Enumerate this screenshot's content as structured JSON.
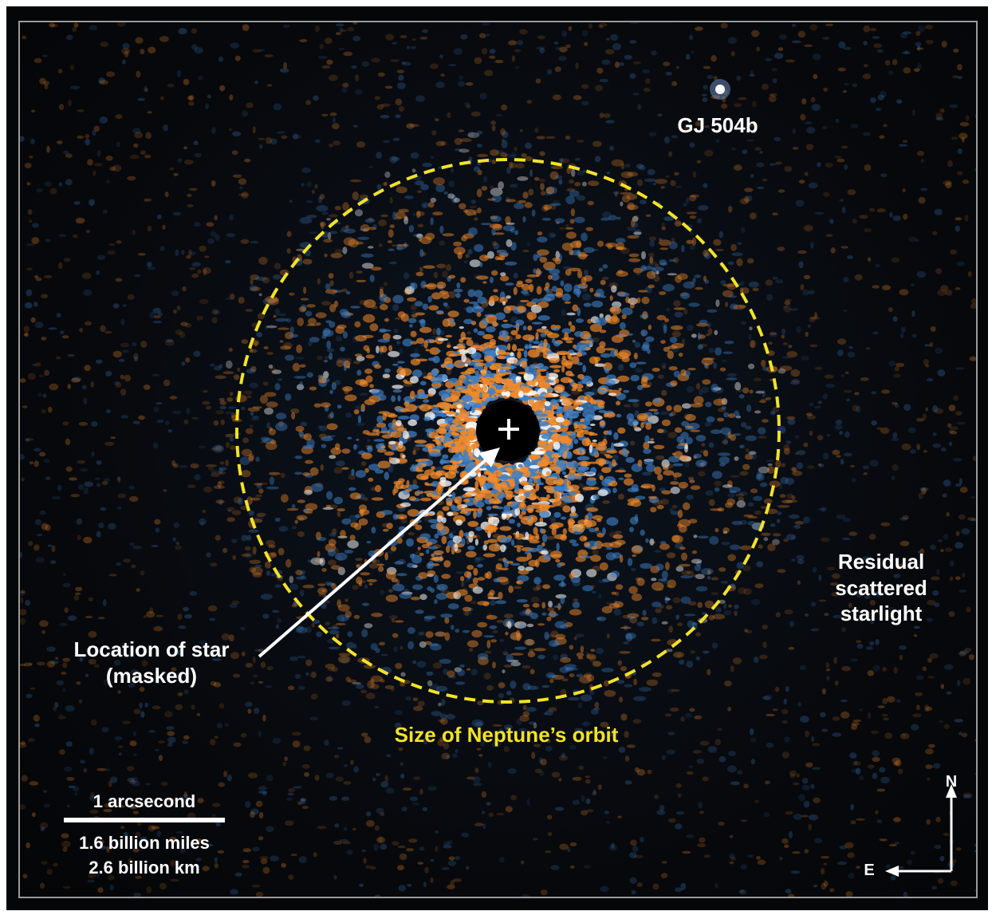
{
  "labels": {
    "planet": "GJ 504b",
    "residual_line1": "Residual",
    "residual_line2": "scattered",
    "residual_line3": "starlight",
    "star_line1": "Location of star",
    "star_line2": "(masked)",
    "orbit": "Size of Neptune’s orbit"
  },
  "scale_bar": {
    "title": "1 arcsecond",
    "miles": "1.6 billion miles",
    "km": "2.6 billion km"
  },
  "compass": {
    "north": "N",
    "east": "E"
  },
  "colors": {
    "speckle_orange": "#f08a2c",
    "speckle_blue": "#3f7fc4",
    "orbit_circle": "#f2e22a",
    "label_white": "#ffffff"
  }
}
